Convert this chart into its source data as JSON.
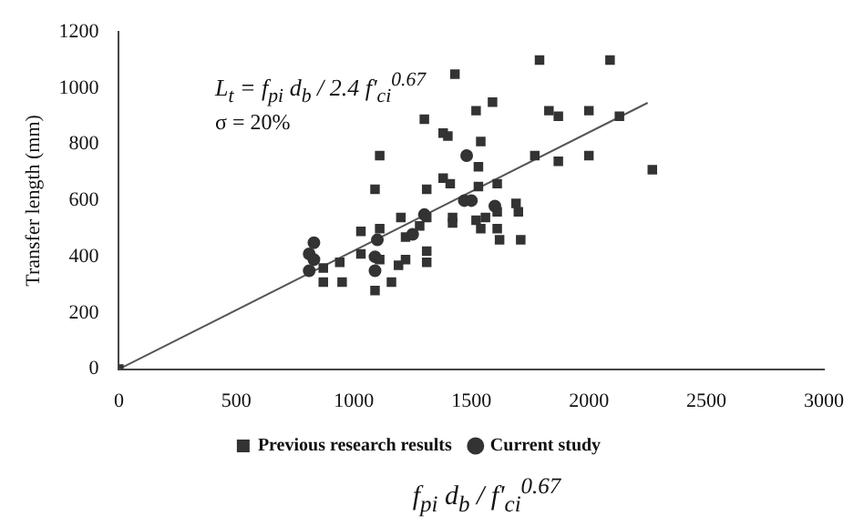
{
  "chart_data": {
    "type": "scatter",
    "xlabel": "f$_{pi}$ d$_{b}$ / f'$_{ci}$$^{0.67}$",
    "ylabel": "Transfer length (mm)",
    "annotations": [
      "L$_{t}$ = f$_{pi}$ d$_{b}$ / 2.4 f'$_{ci}$$^{0.67}$",
      "σ = 20%"
    ],
    "xlim": [
      0,
      3000
    ],
    "xticks": [
      0,
      500,
      1000,
      1500,
      2000,
      2500,
      3000
    ],
    "ylim": [
      0,
      1200
    ],
    "yticks": [
      0,
      200,
      400,
      600,
      800,
      1000,
      1200
    ],
    "grid": false,
    "legend": "bottom",
    "series": [
      {
        "name": "Previous research results",
        "color": "#333333",
        "marker": "square",
        "x": [
          0,
          1790,
          2090,
          1430,
          1590,
          1520,
          1830,
          1870,
          2000,
          2130,
          1770,
          1870,
          2000,
          2270,
          1300,
          1380,
          1400,
          1110,
          1090,
          1310,
          1410,
          1540,
          1530,
          1530,
          1380,
          1610,
          1690,
          1700,
          1610,
          1560,
          1030,
          1110,
          1200,
          1220,
          1280,
          1310,
          870,
          940,
          1030,
          1110,
          1190,
          1220,
          1310,
          1310,
          870,
          950,
          1090,
          1160,
          1420,
          1420,
          1520,
          1540,
          1610,
          1620,
          1710
        ],
        "values": [
          0,
          1100,
          1100,
          1050,
          950,
          920,
          920,
          900,
          920,
          900,
          760,
          740,
          760,
          710,
          890,
          840,
          830,
          760,
          640,
          640,
          660,
          810,
          720,
          650,
          680,
          660,
          590,
          560,
          560,
          540,
          490,
          500,
          540,
          470,
          510,
          540,
          360,
          380,
          410,
          390,
          370,
          390,
          420,
          380,
          310,
          310,
          280,
          310,
          540,
          520,
          530,
          500,
          500,
          460,
          460
        ]
      },
      {
        "name": "Current study",
        "color": "#333333",
        "marker": "circle",
        "x": [
          830,
          810,
          830,
          810,
          1090,
          1100,
          1090,
          1300,
          1480,
          1470,
          1500,
          1250,
          1600
        ],
        "values": [
          450,
          410,
          390,
          350,
          400,
          460,
          350,
          550,
          760,
          600,
          600,
          480,
          580
        ]
      },
      {
        "type": "line",
        "color": "#555555",
        "marker": "none",
        "x": [
          0,
          2250
        ],
        "values": [
          0,
          948
        ]
      }
    ]
  }
}
